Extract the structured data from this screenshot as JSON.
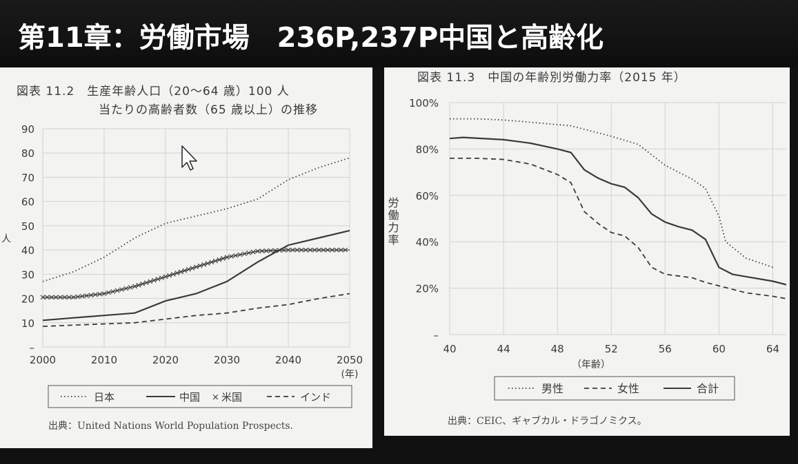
{
  "header": {
    "title": "第11章：労働市場　236P,237P中国と高齢化"
  },
  "colors": {
    "background": "#111111",
    "panel": "#f3f3f1",
    "line": "#3a3a3a",
    "grid": "#d2d2d2"
  },
  "left_figure": {
    "caption_line1": "図表 11.2　生産年齢人口（20～64 歳）100 人",
    "caption_line2": "当たりの高齢者数（65 歳以上）の推移",
    "source": "出典：United Nations World Population Prospects."
  },
  "right_figure": {
    "caption": "図表 11.3　中国の年齢別労働力率（2015 年）",
    "source": "出典：CEIC、ギャブカル・ドラゴノミクス。"
  },
  "chart_data": [
    {
      "type": "line",
      "title": "図表 11.2 生産年齢人口（20～64 歳）100 人当たりの高齢者数（65 歳以上）の推移",
      "xlabel": "(年)",
      "ylabel": "人",
      "xlim": [
        2000,
        2050
      ],
      "ylim": [
        0,
        90
      ],
      "xticks": [
        2000,
        2010,
        2020,
        2030,
        2040,
        2050
      ],
      "yticks": [
        "–",
        "10",
        "20",
        "30",
        "40",
        "50",
        "60",
        "70",
        "80",
        "90"
      ],
      "grid": true,
      "legend": {
        "position": "bottom",
        "labels": [
          "日本",
          "中国",
          "米国",
          "インド"
        ]
      },
      "series": [
        {
          "name": "日本",
          "style": "dotted",
          "points": [
            [
              2000,
              27
            ],
            [
              2005,
              31
            ],
            [
              2010,
              37
            ],
            [
              2015,
              45
            ],
            [
              2020,
              51
            ],
            [
              2025,
              54
            ],
            [
              2030,
              57
            ],
            [
              2035,
              61
            ],
            [
              2040,
              69
            ],
            [
              2045,
              74
            ],
            [
              2050,
              78
            ]
          ]
        },
        {
          "name": "中国",
          "style": "solid",
          "points": [
            [
              2000,
              11
            ],
            [
              2005,
              12
            ],
            [
              2010,
              13
            ],
            [
              2015,
              14
            ],
            [
              2020,
              19
            ],
            [
              2025,
              22
            ],
            [
              2030,
              27
            ],
            [
              2035,
              35
            ],
            [
              2040,
              42
            ],
            [
              2045,
              45
            ],
            [
              2050,
              48
            ]
          ]
        },
        {
          "name": "米国",
          "style": "cross",
          "points": [
            [
              2000,
              20.5
            ],
            [
              2005,
              20.5
            ],
            [
              2010,
              22
            ],
            [
              2015,
              25
            ],
            [
              2020,
              29
            ],
            [
              2025,
              33
            ],
            [
              2030,
              37
            ],
            [
              2035,
              39.5
            ],
            [
              2040,
              40
            ],
            [
              2045,
              40
            ],
            [
              2050,
              40
            ]
          ]
        },
        {
          "name": "インド",
          "style": "dashed",
          "points": [
            [
              2000,
              8.5
            ],
            [
              2005,
              9
            ],
            [
              2010,
              9.5
            ],
            [
              2015,
              10
            ],
            [
              2020,
              11.5
            ],
            [
              2025,
              13
            ],
            [
              2030,
              14
            ],
            [
              2035,
              16
            ],
            [
              2040,
              17.5
            ],
            [
              2045,
              20
            ],
            [
              2050,
              22
            ]
          ]
        }
      ]
    },
    {
      "type": "line",
      "title": "図表 11.3 中国の年齢別労働力率（2015 年）",
      "xlabel": "（年齢）",
      "ylabel": "労働力率",
      "xlim": [
        40,
        65
      ],
      "ylim": [
        0,
        100
      ],
      "xticks": [
        40,
        44,
        48,
        52,
        56,
        60,
        64
      ],
      "yticks": [
        "–",
        "20%",
        "40%",
        "60%",
        "80%",
        "100%"
      ],
      "grid": true,
      "legend": {
        "position": "bottom",
        "labels": [
          "男性",
          "女性",
          "合計"
        ]
      },
      "series": [
        {
          "name": "男性",
          "style": "dotted",
          "points": [
            [
              40,
              93
            ],
            [
              42,
              93
            ],
            [
              44,
              92.5
            ],
            [
              46,
              91.5
            ],
            [
              48,
              90.5
            ],
            [
              49,
              90
            ],
            [
              50,
              88.5
            ],
            [
              52,
              85.5
            ],
            [
              54,
              82
            ],
            [
              56,
              73
            ],
            [
              58,
              67
            ],
            [
              59,
              63
            ],
            [
              60,
              51
            ],
            [
              60.5,
              40
            ],
            [
              62,
              33
            ],
            [
              64,
              29
            ]
          ]
        },
        {
          "name": "女性",
          "style": "dashed",
          "points": [
            [
              40,
              76
            ],
            [
              42,
              76
            ],
            [
              44,
              75.5
            ],
            [
              46,
              73.5
            ],
            [
              48,
              69
            ],
            [
              49,
              65.5
            ],
            [
              50,
              53
            ],
            [
              51,
              48
            ],
            [
              52,
              44
            ],
            [
              53,
              42.5
            ],
            [
              54,
              37.5
            ],
            [
              55,
              29
            ],
            [
              56,
              26
            ],
            [
              58,
              24.5
            ],
            [
              59,
              22.5
            ],
            [
              60,
              21
            ],
            [
              62,
              18
            ],
            [
              64,
              16.5
            ],
            [
              65,
              15.5
            ]
          ]
        },
        {
          "name": "合計",
          "style": "solid",
          "points": [
            [
              40,
              84.5
            ],
            [
              41,
              85
            ],
            [
              44,
              84
            ],
            [
              46,
              82.5
            ],
            [
              48,
              80
            ],
            [
              49,
              78.5
            ],
            [
              50,
              71
            ],
            [
              51,
              67.5
            ],
            [
              52,
              65
            ],
            [
              53,
              63.5
            ],
            [
              54,
              59
            ],
            [
              55,
              52
            ],
            [
              56,
              48.5
            ],
            [
              57,
              46.5
            ],
            [
              58,
              45
            ],
            [
              59,
              41
            ],
            [
              60,
              29
            ],
            [
              61,
              26
            ],
            [
              62,
              25
            ],
            [
              64,
              23
            ],
            [
              65,
              21.5
            ]
          ]
        }
      ]
    }
  ]
}
